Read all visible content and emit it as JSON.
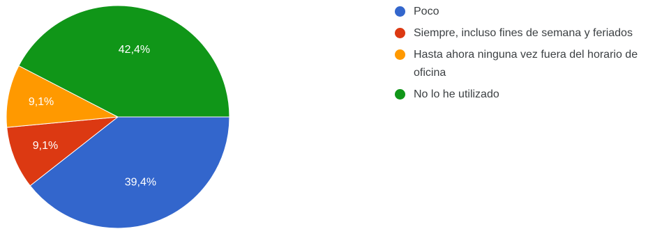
{
  "chart_data": {
    "type": "pie",
    "title": "",
    "start": "three o'clock, clockwise",
    "legend_position": "right",
    "slices": [
      {
        "label": "Poco",
        "percent": 39.4,
        "value_label": "39,4%",
        "color": "#3366cc"
      },
      {
        "label": "Siempre, incluso fines de semana y feriados",
        "percent": 9.1,
        "value_label": "9,1%",
        "color": "#dc3912"
      },
      {
        "label": "Hasta ahora ninguna vez fuera del horario de oficina",
        "percent": 9.1,
        "value_label": "9,1%",
        "color": "#ff9900"
      },
      {
        "label": "No lo he utilizado",
        "percent": 42.4,
        "value_label": "42,4%",
        "color": "#109618"
      }
    ]
  }
}
